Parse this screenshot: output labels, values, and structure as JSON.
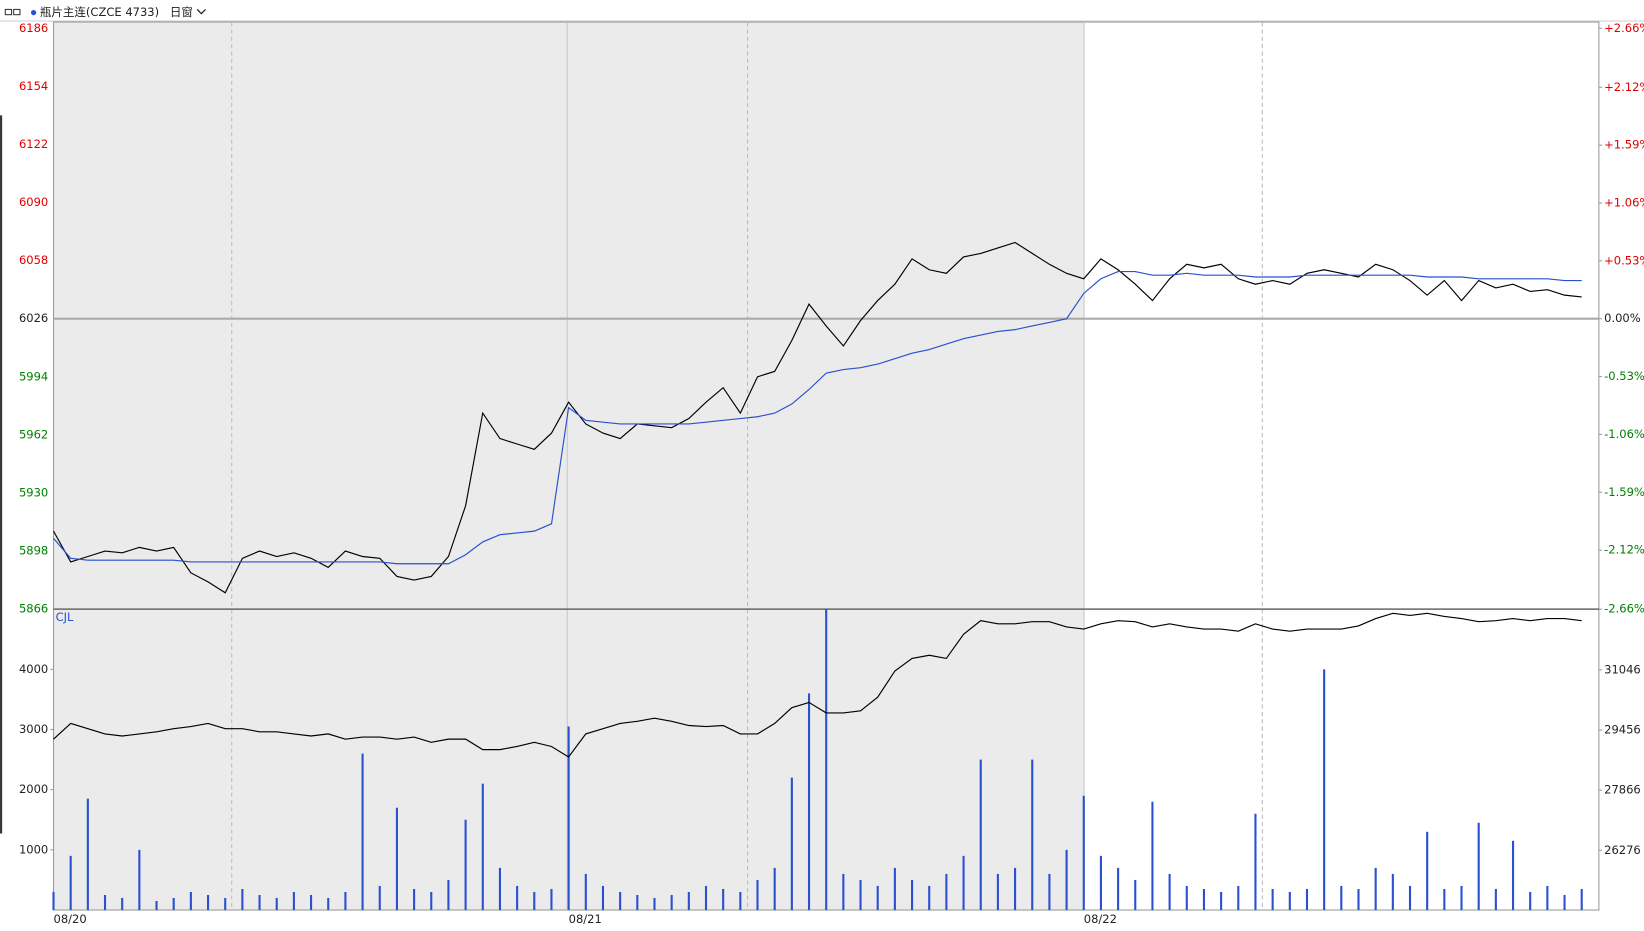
{
  "chart_data": [
    {
      "type": "line",
      "title": "瓶片主连(CZCE 4733)",
      "subtitle": "日窗",
      "ylim": [
        5866,
        6186
      ],
      "yticks": [
        6186,
        6154,
        6122,
        6090,
        6058,
        6026,
        5994,
        5962,
        5930,
        5898,
        5866
      ],
      "baseline": 6026,
      "y2lim": [
        -2.66,
        2.66
      ],
      "y2ticks": [
        {
          "value": 2.66,
          "label": "+2.66%"
        },
        {
          "value": 2.12,
          "label": "+2.12%"
        },
        {
          "value": 1.59,
          "label": "+1.59%"
        },
        {
          "value": 1.06,
          "label": "+1.06%"
        },
        {
          "value": 0.53,
          "label": "+0.53%"
        },
        {
          "value": 0,
          "label": "0.00%"
        },
        {
          "value": -0.53,
          "label": "-0.53%"
        },
        {
          "value": -1.06,
          "label": "-1.06%"
        },
        {
          "value": -1.59,
          "label": "-1.59%"
        },
        {
          "value": -2.12,
          "label": "-2.12%"
        },
        {
          "value": -2.66,
          "label": "-2.66%"
        }
      ],
      "up_color": "#e00000",
      "down_color": "#008000",
      "flat_color": "#222222",
      "series": [
        {
          "color": "#000000",
          "values": [
            5909,
            5892,
            5895,
            5898,
            5897,
            5900,
            5898,
            5900,
            5886,
            5881,
            5875,
            5894,
            5898,
            5895,
            5897,
            5894,
            5889,
            5898,
            5895,
            5894,
            5884,
            5882,
            5884,
            5895,
            5923,
            5974,
            5960,
            5957,
            5954,
            5963,
            5980,
            5968,
            5963,
            5960,
            5968,
            5967,
            5966,
            5971,
            5980,
            5988,
            5974,
            5994,
            5997,
            6014,
            6034,
            6022,
            6011,
            6025,
            6036,
            6045,
            6059,
            6053,
            6051,
            6060,
            6062,
            6065,
            6068,
            6062,
            6056,
            6051,
            6048,
            6059,
            6053,
            6045,
            6036,
            6048,
            6056,
            6054,
            6056,
            6048,
            6045,
            6047,
            6045,
            6051,
            6053,
            6051,
            6049,
            6056,
            6053,
            6047,
            6039,
            6047,
            6036,
            6047,
            6043,
            6045,
            6041,
            6042,
            6039,
            6038
          ]
        },
        {
          "color": "#2850d0",
          "values": [
            5905,
            5894,
            5893,
            5893,
            5893,
            5893,
            5893,
            5893,
            5892,
            5892,
            5892,
            5892,
            5892,
            5892,
            5892,
            5892,
            5892,
            5892,
            5892,
            5892,
            5891,
            5891,
            5891,
            5891,
            5896,
            5903,
            5907,
            5908,
            5909,
            5913,
            5977,
            5970,
            5969,
            5968,
            5968,
            5968,
            5968,
            5968,
            5969,
            5970,
            5971,
            5972,
            5974,
            5979,
            5987,
            5996,
            5998,
            5999,
            6001,
            6004,
            6007,
            6009,
            6012,
            6015,
            6017,
            6019,
            6020,
            6022,
            6024,
            6026,
            6040,
            6048,
            6052,
            6052,
            6050,
            6050,
            6051,
            6050,
            6050,
            6050,
            6049,
            6049,
            6049,
            6050,
            6050,
            6050,
            6050,
            6050,
            6050,
            6050,
            6049,
            6049,
            6049,
            6048,
            6048,
            6048,
            6048,
            6048,
            6047,
            6047
          ]
        }
      ]
    },
    {
      "type": "bar",
      "label": "CJL",
      "categories": [
        "08/20",
        null,
        null,
        null,
        null,
        null,
        null,
        null,
        null,
        null,
        null,
        null,
        null,
        null,
        null,
        null,
        null,
        null,
        null,
        null,
        null,
        null,
        null,
        null,
        null,
        null,
        null,
        null,
        null,
        null,
        "08/21",
        null,
        null,
        null,
        null,
        null,
        null,
        null,
        null,
        null,
        null,
        null,
        null,
        null,
        null,
        null,
        null,
        null,
        null,
        null,
        null,
        null,
        null,
        null,
        null,
        null,
        null,
        null,
        null,
        null,
        "08/22",
        null,
        null,
        null,
        null,
        null,
        null,
        null,
        null,
        null,
        null,
        null,
        null,
        null,
        null,
        null,
        null,
        null,
        null,
        null,
        null,
        null,
        null,
        null,
        null,
        null,
        null,
        null,
        null,
        null
      ],
      "ylim": [
        0,
        5000
      ],
      "yticks": [
        1000,
        2000,
        3000,
        4000
      ],
      "y2lim": [
        24695,
        32654
      ],
      "y2ticks": [
        26276,
        27866,
        29456,
        31046
      ],
      "series": [
        {
          "type": "bar",
          "color": "#2850d0",
          "values": [
            300,
            900,
            1850,
            250,
            200,
            1000,
            150,
            200,
            300,
            250,
            200,
            350,
            250,
            200,
            300,
            250,
            200,
            300,
            2600,
            400,
            1700,
            350,
            300,
            500,
            1500,
            2100,
            700,
            400,
            300,
            350,
            3050,
            600,
            400,
            300,
            250,
            200,
            250,
            300,
            400,
            350,
            300,
            500,
            700,
            2200,
            3600,
            5000,
            600,
            500,
            400,
            700,
            500,
            400,
            600,
            900,
            2500,
            600,
            700,
            2500,
            600,
            1000,
            1900,
            900,
            700,
            500,
            1800,
            600,
            400,
            350,
            300,
            400,
            1600,
            350,
            300,
            350,
            4000,
            400,
            350,
            700,
            600,
            400,
            1300,
            350,
            400,
            1450,
            350,
            1150,
            300,
            400,
            250,
            350
          ]
        },
        {
          "type": "line",
          "axis": "y2",
          "color": "#000000",
          "values": [
            29216,
            29631,
            29493,
            29354,
            29299,
            29354,
            29409,
            29493,
            29548,
            29631,
            29493,
            29493,
            29409,
            29409,
            29354,
            29299,
            29354,
            29216,
            29271,
            29271,
            29216,
            29271,
            29132,
            29216,
            29216,
            28938,
            28938,
            29021,
            29132,
            29021,
            28744,
            29354,
            29493,
            29631,
            29687,
            29770,
            29687,
            29576,
            29548,
            29576,
            29354,
            29354,
            29631,
            30047,
            30185,
            29908,
            29908,
            29964,
            30324,
            31017,
            31350,
            31434,
            31350,
            31988,
            32349,
            32266,
            32266,
            32321,
            32321,
            32183,
            32127,
            32266,
            32349,
            32321,
            32183,
            32266,
            32183,
            32127,
            32127,
            32072,
            32266,
            32127,
            32072,
            32127,
            32127,
            32127,
            32210,
            32404,
            32543,
            32488,
            32543,
            32460,
            32404,
            32321,
            32349,
            32404,
            32349,
            32404,
            32404,
            32349
          ]
        }
      ]
    }
  ]
}
